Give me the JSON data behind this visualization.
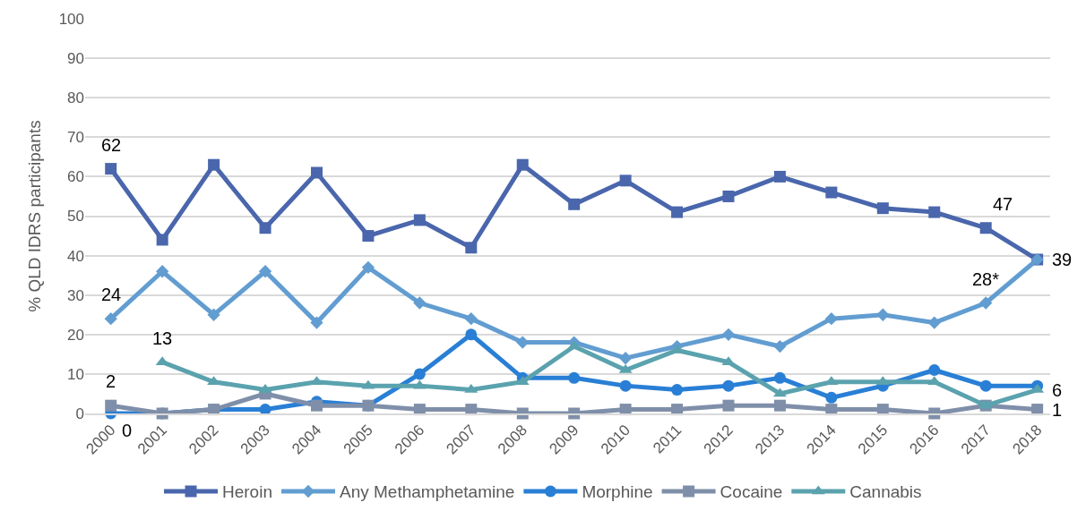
{
  "chart_data": {
    "type": "line",
    "ylabel": "% QLD IDRS participants",
    "categories": [
      "2000",
      "2001",
      "2002",
      "2003",
      "2004",
      "2005",
      "2006",
      "2007",
      "2008",
      "2009",
      "2010",
      "2011",
      "2012",
      "2013",
      "2014",
      "2015",
      "2016",
      "2017",
      "2018"
    ],
    "series": [
      {
        "name": "Heroin",
        "color": "#4a66ac",
        "marker": "square",
        "values": [
          62,
          44,
          63,
          47,
          61,
          45,
          49,
          42,
          63,
          53,
          59,
          51,
          55,
          60,
          56,
          52,
          51,
          47,
          39
        ],
        "value_labels": [
          "62",
          null,
          null,
          null,
          null,
          null,
          null,
          null,
          null,
          null,
          null,
          null,
          null,
          null,
          null,
          null,
          null,
          "47",
          "39"
        ]
      },
      {
        "name": "Any Methamphetamine",
        "color": "#629dd1",
        "marker": "diamond",
        "values": [
          24,
          36,
          25,
          36,
          23,
          37,
          28,
          24,
          18,
          18,
          14,
          17,
          20,
          17,
          24,
          25,
          23,
          28,
          39
        ],
        "value_labels": [
          "24",
          null,
          null,
          null,
          null,
          null,
          null,
          null,
          null,
          null,
          null,
          null,
          null,
          null,
          null,
          null,
          null,
          "28*",
          null
        ]
      },
      {
        "name": "Morphine",
        "color": "#297fd5",
        "marker": "circle",
        "values": [
          0,
          0,
          1,
          1,
          3,
          2,
          10,
          20,
          9,
          9,
          7,
          6,
          7,
          9,
          4,
          7,
          11,
          7,
          7
        ],
        "value_labels": [
          "0",
          null,
          null,
          null,
          null,
          null,
          null,
          null,
          null,
          null,
          null,
          null,
          null,
          null,
          null,
          null,
          null,
          null,
          null
        ]
      },
      {
        "name": "Cocaine",
        "color": "#7f8fa9",
        "marker": "square",
        "values": [
          2,
          0,
          1,
          5,
          2,
          2,
          1,
          1,
          0,
          0,
          1,
          1,
          2,
          2,
          1,
          1,
          0,
          2,
          1
        ],
        "value_labels": [
          "2",
          null,
          null,
          null,
          null,
          null,
          null,
          null,
          null,
          null,
          null,
          null,
          null,
          null,
          null,
          null,
          null,
          null,
          "1"
        ]
      },
      {
        "name": "Cannabis",
        "color": "#5aa2ae",
        "marker": "triangle",
        "values": [
          null,
          13,
          8,
          6,
          8,
          7,
          7,
          6,
          8,
          17,
          11,
          16,
          13,
          5,
          8,
          8,
          8,
          2,
          6
        ],
        "value_labels": [
          null,
          "13",
          null,
          null,
          null,
          null,
          null,
          null,
          null,
          null,
          null,
          null,
          null,
          null,
          null,
          null,
          null,
          null,
          "6"
        ]
      }
    ],
    "ylim": [
      0,
      100
    ],
    "yticks": [
      0,
      10,
      20,
      30,
      40,
      50,
      60,
      70,
      80,
      90,
      100
    ],
    "grid": "y",
    "legend": "bottom",
    "line_style": "solid"
  }
}
